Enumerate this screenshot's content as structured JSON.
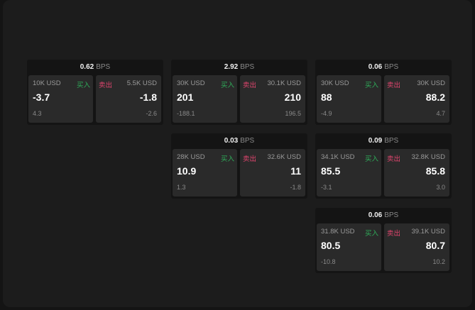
{
  "unit": "BPS",
  "buy_label": "买入",
  "sell_label": "卖出",
  "quotes": [
    {
      "spread": "0.62",
      "bid_size": "10K USD",
      "bid": "-3.7",
      "bid_change": "4.3",
      "ask_size": "5.5K USD",
      "ask": "-1.8",
      "ask_change": "-2.6"
    },
    {
      "spread": "2.92",
      "bid_size": "30K USD",
      "bid": "201",
      "bid_change": "-188.1",
      "ask_size": "30.1K USD",
      "ask": "210",
      "ask_change": "196.5"
    },
    {
      "spread": "0.06",
      "bid_size": "30K USD",
      "bid": "88",
      "bid_change": "-4.9",
      "ask_size": "30K USD",
      "ask": "88.2",
      "ask_change": "4.7"
    },
    {
      "spread": "0.03",
      "bid_size": "28K USD",
      "bid": "10.9",
      "bid_change": "1.3",
      "ask_size": "32.6K USD",
      "ask": "11",
      "ask_change": "-1.8"
    },
    {
      "spread": "0.09",
      "bid_size": "34.1K USD",
      "bid": "85.5",
      "bid_change": "-3.1",
      "ask_size": "32.8K USD",
      "ask": "85.8",
      "ask_change": "3.0"
    },
    {
      "spread": "0.06",
      "bid_size": "31.8K USD",
      "bid": "80.5",
      "bid_change": "-10.8",
      "ask_size": "39.1K USD",
      "ask": "80.7",
      "ask_change": "10.2"
    }
  ]
}
